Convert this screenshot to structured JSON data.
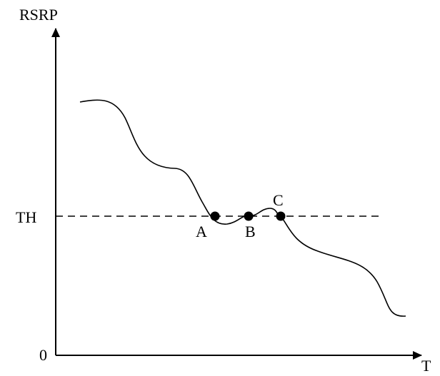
{
  "chart_data": {
    "type": "line",
    "ylabel": "RSRP",
    "xlabel": "T",
    "origin_label": "0",
    "threshold": {
      "label": "TH",
      "style": "dashed"
    },
    "curve_color": "#000000",
    "points": [
      {
        "label": "A"
      },
      {
        "label": "B"
      },
      {
        "label": "C"
      }
    ],
    "grid": false,
    "legend": "none"
  }
}
